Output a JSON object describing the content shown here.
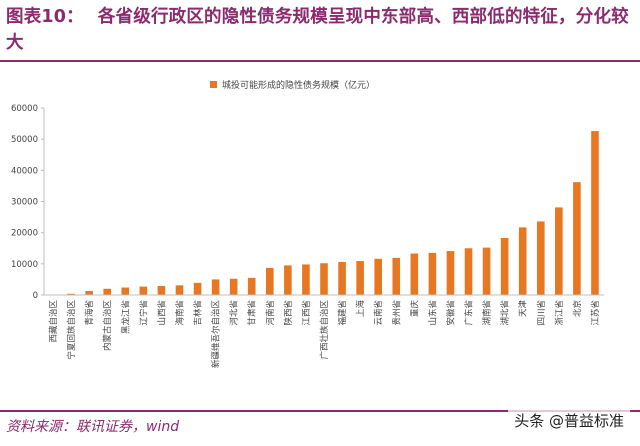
{
  "title_label": "图表10：",
  "title_text": "各省级行政区的隐性债务规模呈现中东部高、西部低的特征，分化较大",
  "source": "资料来源：联讯证券，wind",
  "watermark": "头条 @普益标准",
  "colors": {
    "bar": "#e87722",
    "title": "#8b2a6e",
    "axis": "#bfbfbf",
    "text": "#444444"
  },
  "chart_data": {
    "type": "bar",
    "legend": "城投可能形成的隐性债务规模（亿元）",
    "legend_position": "top-center",
    "grid": false,
    "ylim": [
      0,
      60000
    ],
    "yticks": [
      0,
      10000,
      20000,
      30000,
      40000,
      50000,
      60000
    ],
    "categories": [
      "西藏自治区",
      "宁夏回族自治区",
      "青海省",
      "内蒙古自治区",
      "黑龙江省",
      "辽宁省",
      "山西省",
      "海南省",
      "吉林省",
      "新疆维吾尔自治区",
      "河北省",
      "甘肃省",
      "河南省",
      "陕西省",
      "江西省",
      "广西壮族自治区",
      "福建省",
      "上海",
      "云南省",
      "贵州省",
      "重庆",
      "山东省",
      "安徽省",
      "广东省",
      "湖南省",
      "湖北省",
      "天津",
      "四川省",
      "浙江省",
      "北京",
      "江苏省"
    ],
    "values": [
      100,
      400,
      1300,
      2000,
      2400,
      2700,
      2900,
      3100,
      3900,
      5000,
      5200,
      5500,
      8700,
      9500,
      9800,
      10200,
      10600,
      10900,
      11600,
      11900,
      13300,
      13500,
      14100,
      15000,
      15200,
      18300,
      21700,
      23600,
      28100,
      36200,
      52600
    ]
  }
}
